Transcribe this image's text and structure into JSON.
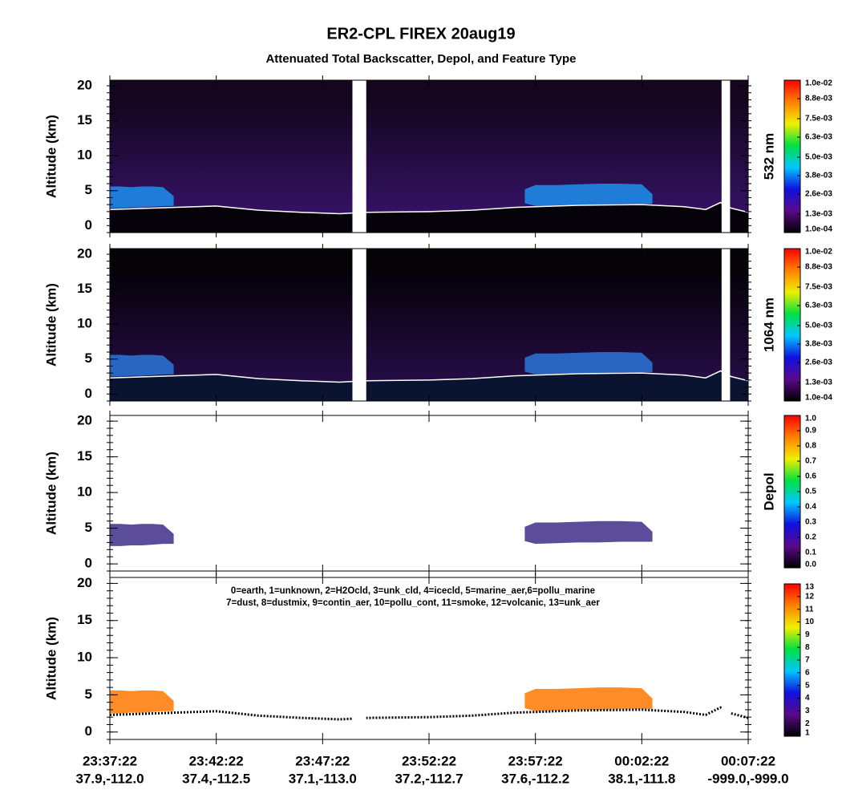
{
  "chart_data": {
    "title": "ER2-CPL FIREX 20aug19",
    "subtitle": "Attenuated Total Backscatter, Depol, and Feature Type",
    "xlim": [
      0,
      30
    ],
    "xticks": [
      {
        "value": 0,
        "label": [
          "23:37:22",
          "37.9,-112.0"
        ]
      },
      {
        "value": 5,
        "label": [
          "23:42:22",
          "37.4,-112.5"
        ]
      },
      {
        "value": 10,
        "label": [
          "23:47:22",
          "37.1,-113.0"
        ]
      },
      {
        "value": 15,
        "label": [
          "23:52:22",
          "37.2,-112.7"
        ]
      },
      {
        "value": 20,
        "label": [
          "23:57:22",
          "37.6,-112.2"
        ]
      },
      {
        "value": 25,
        "label": [
          "00:02:22",
          "38.1,-111.8"
        ]
      },
      {
        "value": 30,
        "label": [
          "00:07:22",
          "-999.0,-999.0"
        ]
      }
    ],
    "surface": {
      "x": [
        0,
        3,
        5,
        7,
        9,
        10.8,
        11.4,
        12.1,
        15,
        17,
        19,
        22,
        25,
        27,
        28,
        28.7,
        29.2,
        30
      ],
      "values": [
        2.3,
        2.6,
        2.8,
        2.2,
        1.9,
        1.7,
        1.8,
        1.9,
        2.0,
        2.2,
        2.6,
        2.9,
        3.0,
        2.7,
        2.3,
        3.3,
        2.5,
        1.9
      ]
    },
    "layers": [
      {
        "x": [
          0,
          0.5,
          1,
          1.5,
          2,
          2.5,
          3
        ],
        "top": [
          5.6,
          5.6,
          5.5,
          5.6,
          5.6,
          5.5,
          4.2
        ],
        "bottom": [
          2.5,
          2.5,
          2.6,
          2.6,
          2.7,
          2.8,
          2.8
        ]
      },
      {
        "x": [
          19.5,
          20,
          21,
          22,
          23,
          24,
          25,
          25.5
        ],
        "top": [
          5.2,
          5.8,
          5.8,
          5.9,
          6.0,
          6.0,
          5.9,
          4.5
        ],
        "bottom": [
          3.2,
          2.8,
          2.9,
          3.0,
          3.0,
          3.1,
          3.1,
          3.1
        ]
      }
    ],
    "gaps": [
      [
        11.4,
        12.05
      ],
      [
        28.75,
        29.15
      ]
    ],
    "panels": [
      {
        "type": "curtain",
        "ylabel": "Altitude (km)",
        "ylim": [
          -1,
          20.8
        ],
        "yticks": [
          0,
          5,
          10,
          15,
          20
        ],
        "background": [
          "#3a1470",
          "#14061f"
        ],
        "ground_color": "#06020a",
        "layer_color": "#1e88e5",
        "surface_color": "#ffffff",
        "colorbar": {
          "label": "532 nm",
          "lim": [
            0.0001,
            0.01
          ],
          "colors": [
            "#000000",
            "#5a0a8a",
            "#1010e0",
            "#00c8ff",
            "#00e040",
            "#f0f000",
            "#ff8000",
            "#ff0000"
          ],
          "ticks": [
            {
              "value": 0.0001,
              "label": "1.0e-04"
            },
            {
              "value": 0.0013,
              "label": "1.3e-03"
            },
            {
              "value": 0.0026,
              "label": "2.6e-03"
            },
            {
              "value": 0.0038,
              "label": "3.8e-03"
            },
            {
              "value": 0.005,
              "label": "5.0e-03"
            },
            {
              "value": 0.0063,
              "label": "6.3e-03"
            },
            {
              "value": 0.0075,
              "label": "7.5e-03"
            },
            {
              "value": 0.0088,
              "label": "8.8e-03"
            },
            {
              "value": 0.01,
              "label": "1.0e-02"
            }
          ]
        }
      },
      {
        "type": "curtain",
        "ylabel": "Altitude (km)",
        "ylim": [
          -1,
          20.8
        ],
        "yticks": [
          0,
          5,
          10,
          15,
          20
        ],
        "background": [
          "#2a0e50",
          "#050208"
        ],
        "ground_color": "#0a1430",
        "layer_color": "#2a70d0",
        "surface_color": "#ffffff",
        "colorbar": {
          "label": "1064 nm",
          "lim": [
            0.0001,
            0.01
          ],
          "colors": [
            "#000000",
            "#5a0a8a",
            "#1010e0",
            "#00c8ff",
            "#00e040",
            "#f0f000",
            "#ff8000",
            "#ff0000"
          ],
          "ticks": [
            {
              "value": 0.0001,
              "label": "1.0e-04"
            },
            {
              "value": 0.0013,
              "label": "1.3e-03"
            },
            {
              "value": 0.0026,
              "label": "2.6e-03"
            },
            {
              "value": 0.0038,
              "label": "3.8e-03"
            },
            {
              "value": 0.005,
              "label": "5.0e-03"
            },
            {
              "value": 0.0063,
              "label": "6.3e-03"
            },
            {
              "value": 0.0075,
              "label": "7.5e-03"
            },
            {
              "value": 0.0088,
              "label": "8.8e-03"
            },
            {
              "value": 0.01,
              "label": "1.0e-02"
            }
          ]
        }
      },
      {
        "type": "curtain",
        "ylabel": "Altitude (km)",
        "ylim": [
          -1,
          20.8
        ],
        "yticks": [
          0,
          5,
          10,
          15,
          20
        ],
        "background": [
          "#ffffff",
          "#ffffff"
        ],
        "layer_color": "#4a3a90",
        "colorbar": {
          "label": "Depol",
          "lim": [
            0,
            1
          ],
          "colors": [
            "#000000",
            "#5a0a8a",
            "#1010e0",
            "#00c8ff",
            "#00e040",
            "#f0f000",
            "#ff8000",
            "#ff0000"
          ],
          "ticks": [
            {
              "value": 0,
              "label": "0.0"
            },
            0.1,
            0.2,
            0.3,
            0.4,
            0.5,
            0.6,
            0.7,
            0.8,
            0.9,
            {
              "value": 1,
              "label": "1.0"
            }
          ]
        }
      },
      {
        "type": "curtain",
        "ylabel": "Altitude (km)",
        "ylim": [
          -1,
          20.8
        ],
        "yticks": [
          0,
          5,
          10,
          15,
          20
        ],
        "background": [
          "#ffffff",
          "#ffffff"
        ],
        "layer_color": "#ff7f0e",
        "surface_color": "#000000",
        "legend_text": [
          "0=earth, 1=unknown, 2=H2Ocld, 3=unk_cld, 4=icecld, 5=marine_aer,6=pollu_marine",
          "7=dust, 8=dustmix, 9=contin_aer, 10=pollu_cont, 11=smoke, 12=volcanic, 13=unk_aer"
        ],
        "colorbar": {
          "lim": [
            1,
            13
          ],
          "colors": [
            "#000000",
            "#5a0a8a",
            "#1010e0",
            "#00c8ff",
            "#00e040",
            "#f0f000",
            "#ff8000",
            "#ff0000"
          ],
          "ticks": [
            1,
            2,
            3,
            4,
            5,
            6,
            7,
            8,
            9,
            10,
            11,
            12,
            13
          ]
        }
      }
    ]
  }
}
